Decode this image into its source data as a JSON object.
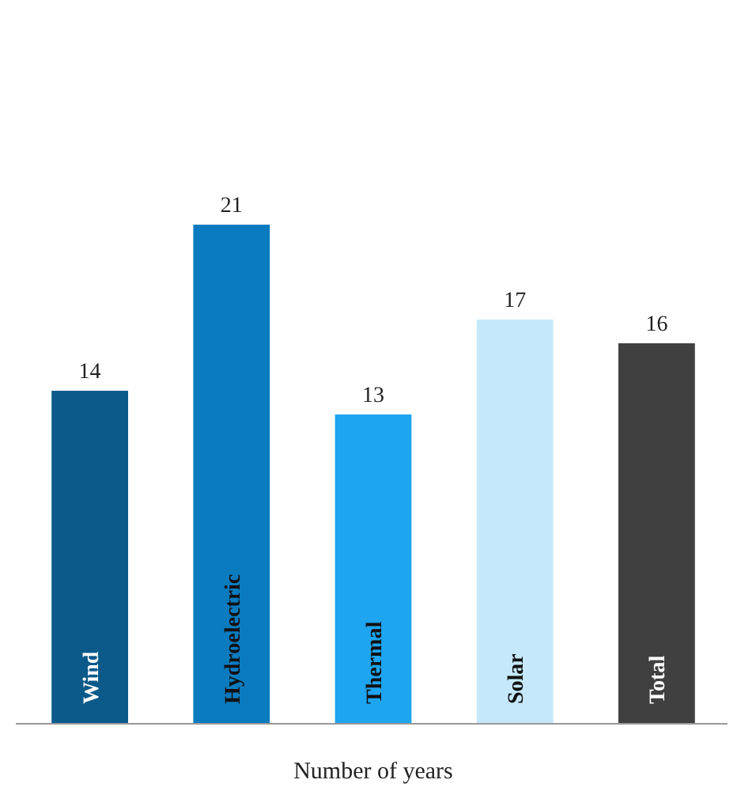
{
  "chart_data": {
    "type": "bar",
    "xlabel": "Number of years",
    "categories": [
      "Wind",
      "Hydroelectric",
      "Thermal",
      "Solar",
      "Total"
    ],
    "values": [
      14,
      21,
      13,
      17,
      16
    ],
    "colors": [
      "#0b5a8a",
      "#0a7bbf",
      "#1ea5ef",
      "#c5e9fb",
      "#404040"
    ],
    "data_labels": true
  }
}
